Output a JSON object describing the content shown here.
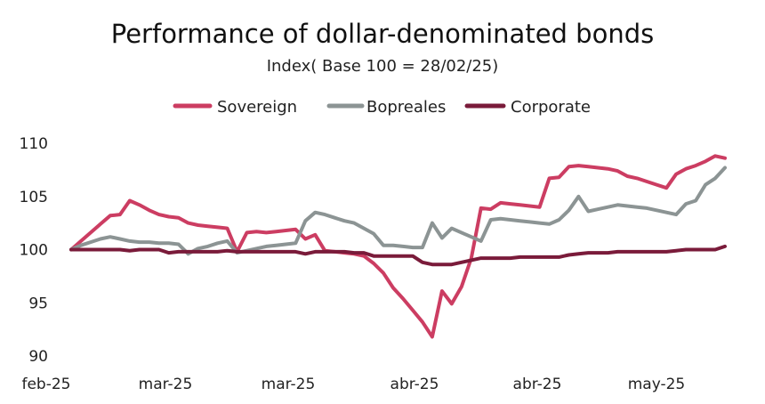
{
  "chart_data": {
    "type": "line",
    "title": "Performance of dollar-denominated bonds",
    "subtitle": "Index( Base 100 = 28/02/25)",
    "xlabel": "",
    "ylabel": "",
    "ylim": [
      90,
      110
    ],
    "yticks": [
      "110",
      "105",
      "100",
      "95",
      "90"
    ],
    "xticks": [
      "feb-25",
      "mar-25",
      "mar-25",
      "abr-25",
      "abr-25",
      "may-25"
    ],
    "legend_position": "top-center",
    "grid": false,
    "x": [
      0,
      1,
      2,
      3,
      4,
      5,
      6,
      7,
      8,
      9,
      10,
      11,
      12,
      13,
      14,
      15,
      16,
      17,
      18,
      19,
      20,
      21,
      22,
      23,
      24,
      25,
      26,
      27,
      28,
      29,
      30,
      31,
      32,
      33,
      34,
      35,
      36,
      37,
      38,
      39,
      40,
      41,
      42,
      43,
      44,
      45,
      46,
      47,
      48,
      49,
      50,
      51,
      52,
      53,
      54,
      55,
      56,
      57,
      58,
      59,
      60,
      61,
      62,
      63,
      64,
      65,
      66,
      67
    ],
    "series": [
      {
        "name": "Sovereign",
        "color": "#cc3d62",
        "values": [
          100,
          100.8,
          101.6,
          102.4,
          103.2,
          103.3,
          104.6,
          104.2,
          103.7,
          103.3,
          103.1,
          103.0,
          102.5,
          102.3,
          102.2,
          102.1,
          102.0,
          99.8,
          101.6,
          101.7,
          101.6,
          101.7,
          101.8,
          101.9,
          101.0,
          101.4,
          99.9,
          99.8,
          99.7,
          99.6,
          99.4,
          98.7,
          97.8,
          96.4,
          95.4,
          94.3,
          93.2,
          91.8,
          96.1,
          94.9,
          96.5,
          99.2,
          103.9,
          103.8,
          104.4,
          104.3,
          104.2,
          104.1,
          104.0,
          106.7,
          106.8,
          107.8,
          107.9,
          107.8,
          107.7,
          107.6,
          107.4,
          106.9,
          106.7,
          106.4,
          106.1,
          105.8,
          107.1,
          107.6,
          107.9,
          108.3,
          108.8,
          108.6
        ]
      },
      {
        "name": "Bopreales",
        "color": "#8c9494",
        "values": [
          100,
          100.4,
          100.7,
          101.0,
          101.2,
          101.0,
          100.8,
          100.7,
          100.7,
          100.6,
          100.6,
          100.5,
          99.6,
          100.1,
          100.3,
          100.6,
          100.8,
          99.7,
          99.9,
          100.1,
          100.3,
          100.4,
          100.5,
          100.6,
          102.7,
          103.5,
          103.3,
          103.0,
          102.7,
          102.5,
          102.0,
          101.5,
          100.4,
          100.4,
          100.3,
          100.2,
          100.2,
          102.5,
          101.1,
          102.0,
          101.6,
          101.2,
          100.8,
          102.8,
          102.9,
          102.8,
          102.7,
          102.6,
          102.5,
          102.4,
          102.8,
          103.7,
          105.0,
          103.6,
          103.8,
          104.0,
          104.2,
          104.1,
          104.0,
          103.9,
          103.7,
          103.5,
          103.3,
          104.3,
          104.6,
          106.1,
          106.7,
          107.7
        ]
      },
      {
        "name": "Corporate",
        "color": "#7a1b3a",
        "values": [
          100,
          100,
          100,
          100,
          100,
          100,
          99.9,
          100,
          100,
          100,
          99.7,
          99.8,
          99.8,
          99.8,
          99.8,
          99.8,
          99.9,
          99.8,
          99.8,
          99.8,
          99.8,
          99.8,
          99.8,
          99.8,
          99.6,
          99.8,
          99.8,
          99.8,
          99.8,
          99.7,
          99.7,
          99.4,
          99.4,
          99.4,
          99.4,
          99.4,
          98.8,
          98.6,
          98.6,
          98.6,
          98.8,
          99.0,
          99.2,
          99.2,
          99.2,
          99.2,
          99.3,
          99.3,
          99.3,
          99.3,
          99.3,
          99.5,
          99.6,
          99.7,
          99.7,
          99.7,
          99.8,
          99.8,
          99.8,
          99.8,
          99.8,
          99.8,
          99.9,
          100.0,
          100.0,
          100.0,
          100.0,
          100.3
        ]
      }
    ]
  }
}
